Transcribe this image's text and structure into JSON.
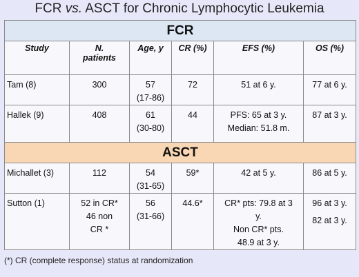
{
  "title": {
    "prefix": "FCR ",
    "vs": "vs.",
    "suffix": " ASCT for Chronic Lymphocytic Leukemia"
  },
  "sections": {
    "fcr": "FCR",
    "asct": "ASCT"
  },
  "headers": {
    "study": "Study",
    "patients_l1": "N.",
    "patients_l2": "patients",
    "age": "Age, y",
    "cr": "CR (%)",
    "efs": "EFS (%)",
    "os": "OS (%)"
  },
  "fcr_rows": [
    {
      "study": "Tam (8)",
      "patients": "300",
      "age_l1": "57",
      "age_l2": "(17-86)",
      "cr": "72",
      "efs": "51 at 6 y.",
      "os": "77 at 6 y."
    },
    {
      "study": "Hallek (9)",
      "patients": "408",
      "age_l1": "61",
      "age_l2": "(30-80)",
      "cr": "44",
      "efs_l1": "PFS: 65 at 3 y.",
      "efs_l2": "Median: 51.8 m.",
      "os": "87 at 3 y."
    }
  ],
  "asct_rows": [
    {
      "study": "Michallet (3)",
      "patients": "112",
      "age_l1": "54",
      "age_l2": "(31-65)",
      "cr": "59*",
      "efs": "42 at 5 y.",
      "os": "86 at 5 y."
    },
    {
      "study": "Sutton (1)",
      "patients_l1": "52 in CR*",
      "patients_l2": "46 non",
      "patients_l3": "CR *",
      "age_l1": "56",
      "age_l2": "(31-66)",
      "cr": "44.6*",
      "efs_l1": "CR* pts: 79.8 at 3",
      "efs_l2": "y.",
      "efs_l3": "Non CR* pts.",
      "efs_l4": "48.9 at 3 y.",
      "os_l1": "96 at 3 y.",
      "os_l2": "82 at 3 y."
    }
  ],
  "footnote": "(*)  CR (complete response) status at randomization"
}
